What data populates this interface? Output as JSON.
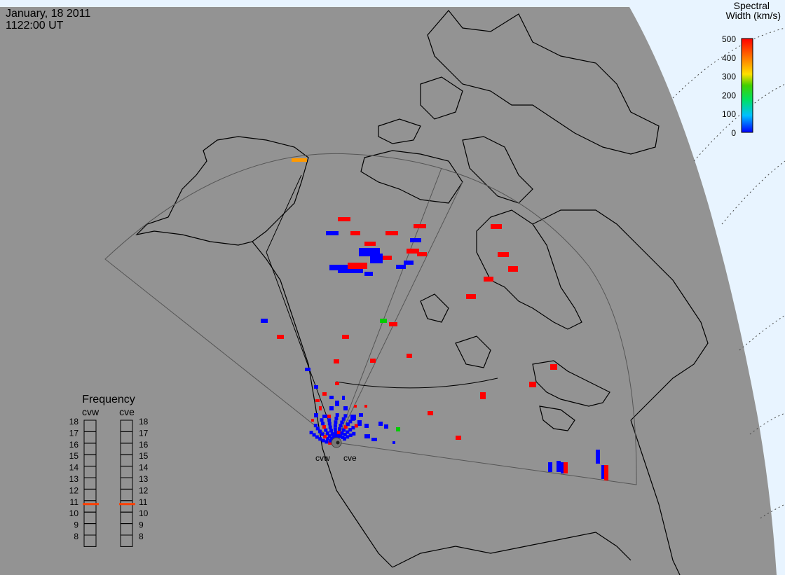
{
  "header": {
    "date": "January, 18 2011",
    "time": "1122:00 UT"
  },
  "colorbar": {
    "title_line1": "Spectral",
    "title_line2": "Width (km/s)",
    "ticks": [
      "500",
      "400",
      "300",
      "200",
      "100",
      "0"
    ],
    "range": [
      0,
      500
    ],
    "colors": [
      "#0000ff",
      "#00c0ff",
      "#00e060",
      "#40d000",
      "#ffe000",
      "#ff8000",
      "#ff0000"
    ]
  },
  "radars": {
    "west_code": "cvw",
    "east_code": "cve"
  },
  "frequency": {
    "title": "Frequency",
    "col_west": "cvw",
    "col_east": "cve",
    "scale_labels": [
      "18",
      "17",
      "16",
      "15",
      "14",
      "13",
      "12",
      "11",
      "10",
      "9",
      "8"
    ],
    "scale_min_mhz": 8,
    "scale_max_mhz": 18,
    "cvw_mhz": 10.7,
    "cve_mhz": 10.7,
    "marker_color": "#ff4000"
  },
  "colors": {
    "land": "#939393",
    "space": "#e8f4ff",
    "coast": "#000000",
    "grid": "#ffffff",
    "fov": "#555555",
    "low_width": "#0000ff",
    "high_width": "#ff0000",
    "mid_width": "#ff9900",
    "green_width": "#00cc00"
  }
}
